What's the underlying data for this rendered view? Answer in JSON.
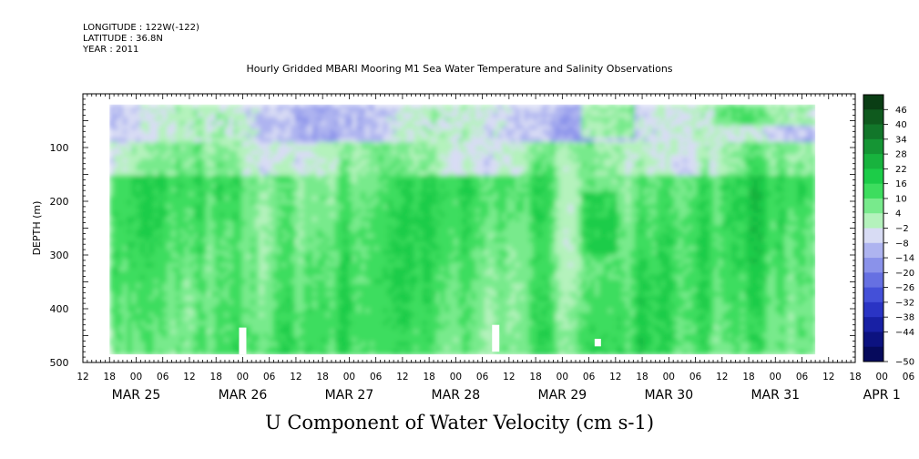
{
  "header": {
    "longitude": "LONGITUDE : 122W(-122)",
    "latitude": "LATITUDE : 36.8N",
    "year": "YEAR : 2011"
  },
  "chart_data": {
    "type": "heatmap",
    "title": "Hourly Gridded MBARI Mooring M1 Sea Water Temperature and Salinity Observations",
    "subtitle": "U Component of Water Velocity (cm s-1)",
    "ylabel": "DEPTH (m)",
    "xlabel": "",
    "ylim": [
      500,
      0
    ],
    "y_ticks": [
      100,
      200,
      300,
      400,
      500
    ],
    "x_range_hours": [
      -12,
      162
    ],
    "x_hour_ticks": [
      "12",
      "18",
      "00",
      "06",
      "12",
      "18",
      "00",
      "06",
      "12",
      "18",
      "00",
      "06",
      "12",
      "18",
      "00",
      "06",
      "12",
      "18",
      "00",
      "06",
      "12",
      "18",
      "00",
      "06",
      "12",
      "18",
      "00",
      "06",
      "12",
      "18",
      "00",
      "06"
    ],
    "x_day_labels": [
      "MAR 25",
      "MAR 26",
      "MAR 27",
      "MAR 28",
      "MAR 29",
      "MAR 30",
      "MAR 31",
      "APR 1"
    ],
    "colorbar": {
      "ticks": [
        46,
        40,
        34,
        28,
        22,
        16,
        10,
        4,
        -2,
        -8,
        -14,
        -20,
        -26,
        -32,
        -38,
        -44,
        -50
      ],
      "colors": [
        "#0a3d14",
        "#0f5a1e",
        "#12762a",
        "#159534",
        "#18b33e",
        "#1ccc48",
        "#3ddd5e",
        "#78ea8c",
        "#b4f2bc",
        "#d8dcf4",
        "#aeb4f0",
        "#8a92ea",
        "#6670e2",
        "#4450d8",
        "#2a34c4",
        "#1820a4",
        "#0c1280",
        "#060a5c"
      ]
    },
    "data_extent": {
      "x_start_hour": -6,
      "x_end_hour": 153,
      "depth_top": 20,
      "depth_bottom": 485
    },
    "missing_data_gaps": [
      {
        "hour": 24,
        "depth_top": 435,
        "depth_bottom": 485
      },
      {
        "hour": 81,
        "depth_top": 430,
        "depth_bottom": 480
      },
      {
        "hour": 104,
        "depth_top": 456,
        "depth_bottom": 470
      }
    ],
    "pattern_summary": {
      "surface_layer": "mostly negative (blue) velocities above ~100 m",
      "mid_depth": "dominantly positive (green) velocities from ~150 m to bottom with blue streaks"
    }
  }
}
